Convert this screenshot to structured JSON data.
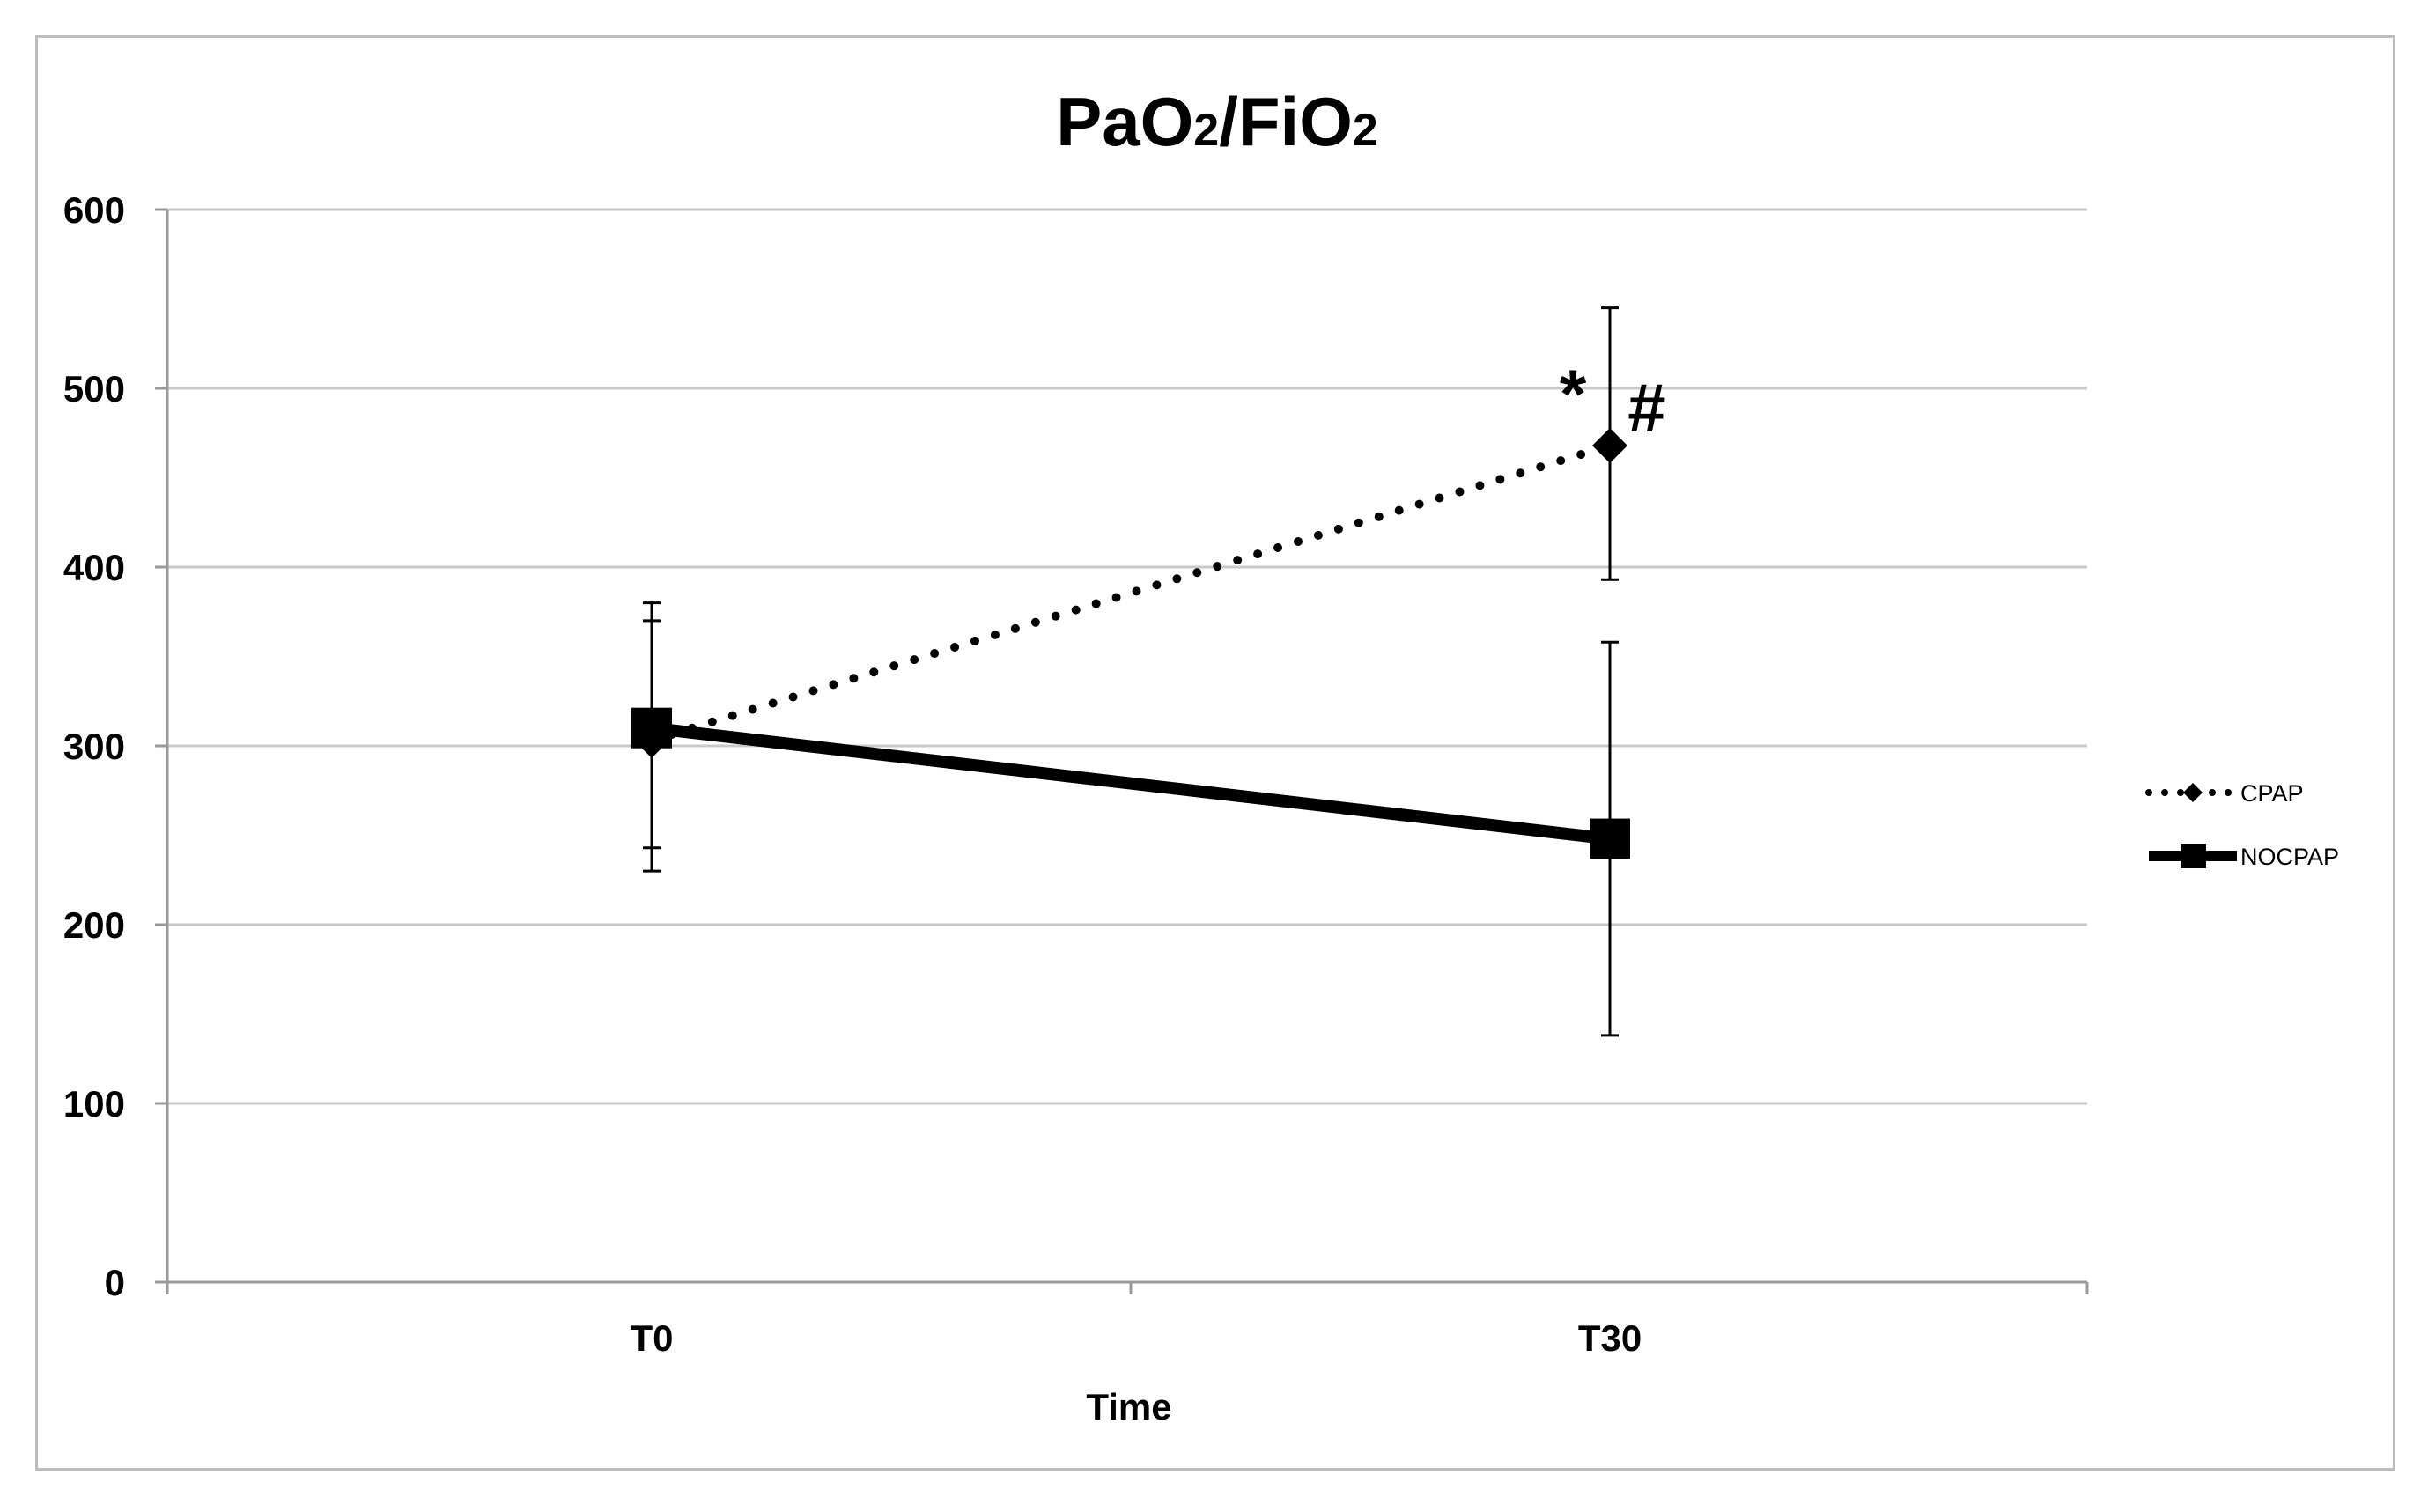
{
  "chart_data": {
    "type": "line",
    "title": "PaO2/FiO2",
    "title_parts": {
      "part1": "PaO",
      "sub1": "2",
      "slash": "/FiO",
      "sub2": "2"
    },
    "xlabel": "Time",
    "ylabel": "",
    "categories": [
      "T0",
      "T30"
    ],
    "ylim": [
      0,
      600
    ],
    "yticks": [
      0,
      100,
      200,
      300,
      400,
      500,
      600
    ],
    "ytick_labels": [
      "0",
      "100",
      "200",
      "300",
      "400",
      "500",
      "600"
    ],
    "grid": true,
    "legend_position": "right",
    "series": [
      {
        "name": "CPAP",
        "values": [
          303,
          468
        ],
        "error_low": [
          230,
          393
        ],
        "error_high": [
          370,
          545
        ],
        "line_style": "dotted",
        "marker": "diamond",
        "color": "#000000"
      },
      {
        "name": "NOCPAP",
        "values": [
          310,
          248
        ],
        "error_low": [
          243,
          138
        ],
        "error_high": [
          380,
          358
        ],
        "line_style": "solid",
        "marker": "square",
        "color": "#000000"
      }
    ],
    "annotations": [
      {
        "text": "*",
        "category": "T30",
        "series": "CPAP"
      },
      {
        "text": "#",
        "category": "T30",
        "series": "CPAP"
      }
    ]
  },
  "colors": {
    "grid": "#c8c8c8",
    "axis": "#9a9a9a",
    "frame": "#bdbdbd",
    "ink": "#000000"
  }
}
